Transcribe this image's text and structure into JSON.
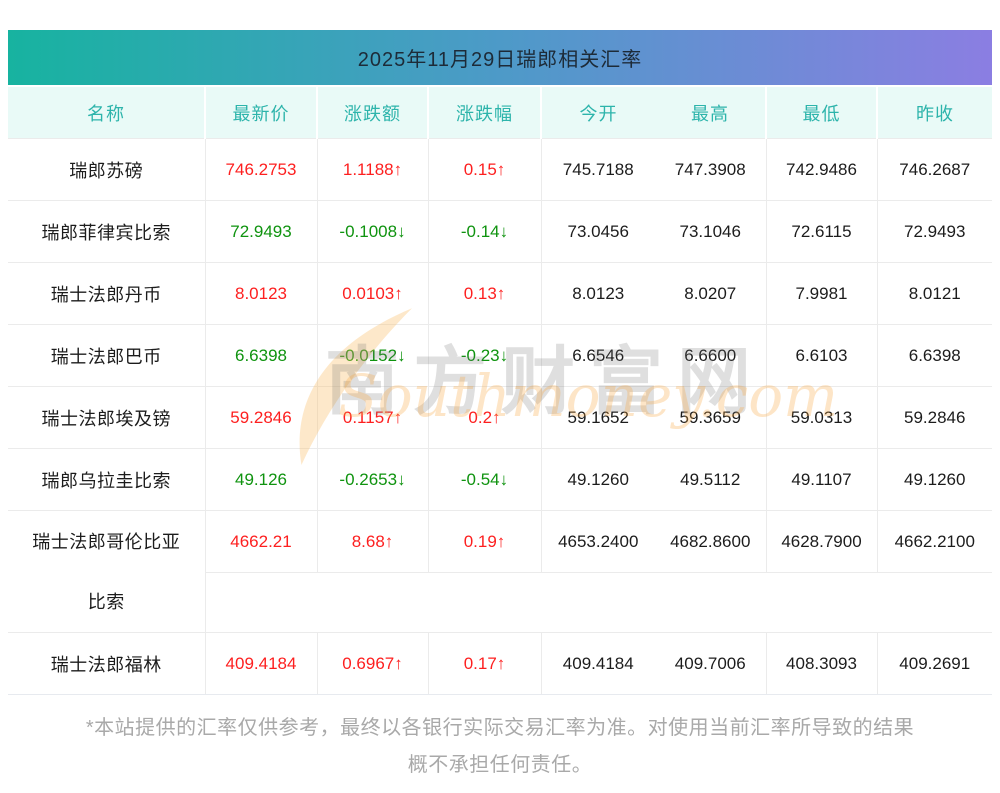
{
  "table": {
    "title": "2025年11月29日瑞郎相关汇率",
    "columns": [
      "名称",
      "最新价",
      "涨跌额",
      "涨跌幅",
      "今开",
      "最高",
      "最低",
      "昨收"
    ],
    "rows": [
      {
        "name": "瑞郎苏磅",
        "last": "746.2753",
        "change": "1.1188↑",
        "pct": "0.15↑",
        "open": "745.7188",
        "high": "747.3908",
        "low": "742.9486",
        "prev": "746.2687",
        "dir": "up"
      },
      {
        "name": "瑞郎菲律宾比索",
        "last": "72.9493",
        "change": "-0.1008↓",
        "pct": "-0.14↓",
        "open": "73.0456",
        "high": "73.1046",
        "low": "72.6115",
        "prev": "72.9493",
        "dir": "down"
      },
      {
        "name": "瑞士法郎丹币",
        "last": "8.0123",
        "change": "0.0103↑",
        "pct": "0.13↑",
        "open": "8.0123",
        "high": "8.0207",
        "low": "7.9981",
        "prev": "8.0121",
        "dir": "up"
      },
      {
        "name": "瑞士法郎巴币",
        "last": "6.6398",
        "change": "-0.0152↓",
        "pct": "-0.23↓",
        "open": "6.6546",
        "high": "6.6600",
        "low": "6.6103",
        "prev": "6.6398",
        "dir": "down"
      },
      {
        "name": "瑞士法郎埃及镑",
        "last": "59.2846",
        "change": "0.1157↑",
        "pct": "0.2↑",
        "open": "59.1652",
        "high": "59.3659",
        "low": "59.0313",
        "prev": "59.2846",
        "dir": "up"
      },
      {
        "name": "瑞郎乌拉圭比索",
        "last": "49.126",
        "change": "-0.2653↓",
        "pct": "-0.54↓",
        "open": "49.1260",
        "high": "49.5112",
        "low": "49.1107",
        "prev": "49.1260",
        "dir": "down"
      },
      {
        "name": "瑞士法郎哥伦比亚比索",
        "last": "4662.21",
        "change": "8.68↑",
        "pct": "0.19↑",
        "open": "4653.2400",
        "high": "4682.8600",
        "low": "4628.7900",
        "prev": "4662.2100",
        "dir": "up",
        "tall": true
      },
      {
        "name": "瑞士法郎福林",
        "last": "409.4184",
        "change": "0.6967↑",
        "pct": "0.17↑",
        "open": "409.4184",
        "high": "409.7006",
        "low": "408.3093",
        "prev": "409.2691",
        "dir": "up"
      }
    ]
  },
  "watermark": {
    "cn": "南方财富网",
    "en": "Southmoney.com"
  },
  "footer": {
    "disclaimer": "*本站提供的汇率仅供参考，最终以各银行实际交易汇率为准。对使用当前汇率所导致的结果概不承担任何责任。"
  },
  "colors": {
    "up_red": "#fd1f1f",
    "down_green": "#0f930f",
    "header_teal": "#2db4ab",
    "header_bg": "#e9faf7",
    "gradient_start": "#17b3a0",
    "gradient_end": "#8b7ee2"
  }
}
